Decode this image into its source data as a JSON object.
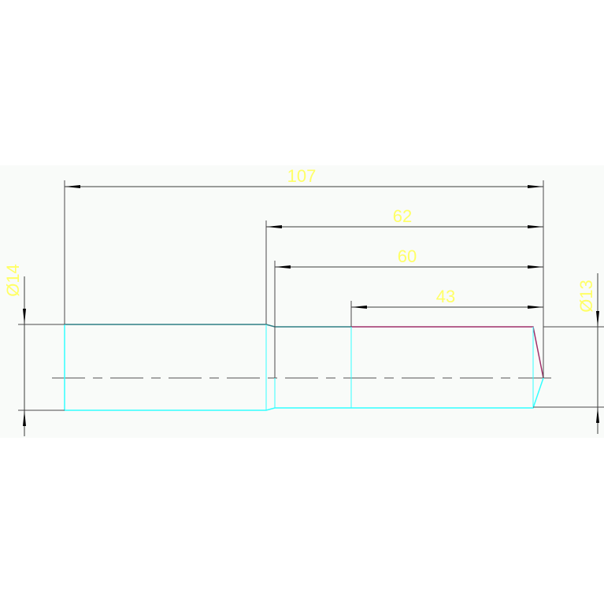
{
  "drawing": {
    "colors": {
      "background": "#f9fbf9",
      "dimension_text": "#ffff66",
      "dimension_lines": "#3c3c3c",
      "outline_visible": "#2f7f86",
      "outline_cyan": "#33ffff",
      "outline_magenta": "#a0306a",
      "centerline": "#8a8a8a"
    },
    "dimensions": {
      "overall_length": "107",
      "length_62": "62",
      "length_60": "60",
      "length_43": "43",
      "diameter_left": "Ø14",
      "diameter_right": "Ø13"
    }
  }
}
